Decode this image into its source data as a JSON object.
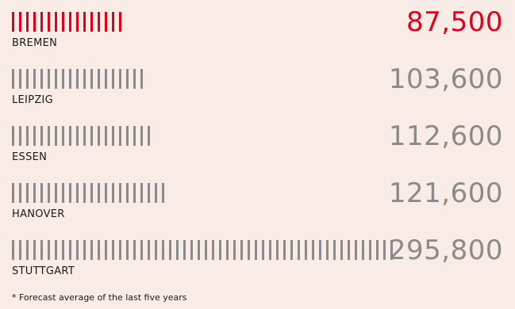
{
  "chart_data": {
    "type": "bar",
    "categories": [
      "BREMEN",
      "LEIPZIG",
      "ESSEN",
      "HANOVER",
      "STUTTGART"
    ],
    "values": [
      87500,
      103600,
      112600,
      121600,
      295800
    ],
    "value_labels": [
      "87,500",
      "103,600",
      "112,600",
      "121,600",
      "295,800"
    ],
    "highlight_index": 0,
    "colors": {
      "highlight": "#e2001a",
      "default": "#8a8a8a",
      "background": "#f9ebe6"
    }
  },
  "footnote": "* Forecast average of the last five years"
}
